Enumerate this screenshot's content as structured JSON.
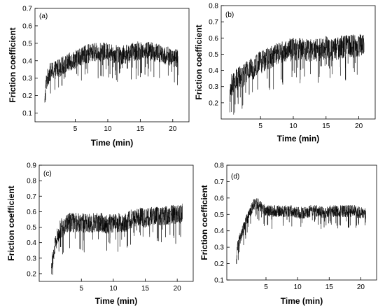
{
  "chart_data": [
    {
      "type": "line",
      "panel_label": "(a)",
      "xlabel": "Time (min)",
      "ylabel": "Friction coefficient",
      "xlim": [
        -1.2,
        22.5
      ],
      "ylim": [
        0.05,
        0.7
      ],
      "xticks": [
        5,
        10,
        15,
        20
      ],
      "yticks": [
        0.1,
        0.2,
        0.3,
        0.4,
        0.5,
        0.6,
        0.7
      ],
      "ytick_labels": [
        "0.1",
        "0.2",
        "0.3",
        "0.4",
        "0.5",
        "0.6",
        "0.7"
      ],
      "grid": false,
      "series": [
        {
          "x": [
            0.3,
            0.5,
            0.8,
            1.0,
            1.5,
            2.0,
            3.0,
            4.0,
            5.0,
            6.0,
            7.0,
            8.0,
            9.0,
            10.0,
            11.0,
            12.0,
            13.0,
            14.0,
            15.0,
            16.0,
            17.0,
            18.0,
            19.0,
            20.0,
            20.8
          ],
          "y": [
            0.16,
            0.27,
            0.31,
            0.33,
            0.34,
            0.35,
            0.37,
            0.39,
            0.41,
            0.43,
            0.44,
            0.45,
            0.45,
            0.45,
            0.44,
            0.43,
            0.44,
            0.45,
            0.46,
            0.46,
            0.45,
            0.44,
            0.43,
            0.42,
            0.41
          ],
          "noise": 0.06,
          "color": "#000000"
        }
      ]
    },
    {
      "type": "line",
      "panel_label": "(b)",
      "xlabel": "Time (min)",
      "ylabel": "Friction coefficient",
      "xlim": [
        -1.0,
        22.5
      ],
      "ylim": [
        0.1,
        0.8
      ],
      "xticks": [
        5,
        10,
        15,
        20
      ],
      "yticks": [
        0.2,
        0.3,
        0.4,
        0.5,
        0.6,
        0.7,
        0.8
      ],
      "ytick_labels": [
        "0.2",
        "0.3",
        "0.4",
        "0.5",
        "0.6",
        "0.7",
        "0.8"
      ],
      "grid": false,
      "series": [
        {
          "x": [
            0.3,
            0.5,
            1.0,
            2.0,
            3.0,
            4.0,
            5.0,
            6.0,
            7.0,
            8.0,
            9.0,
            10.0,
            11.0,
            12.0,
            13.0,
            14.0,
            15.0,
            16.0,
            17.0,
            18.0,
            19.0,
            20.0,
            20.8
          ],
          "y": [
            0.2,
            0.3,
            0.33,
            0.36,
            0.39,
            0.42,
            0.45,
            0.47,
            0.49,
            0.51,
            0.52,
            0.53,
            0.53,
            0.53,
            0.52,
            0.53,
            0.54,
            0.53,
            0.54,
            0.55,
            0.55,
            0.55,
            0.56
          ],
          "noise": 0.08,
          "color": "#000000"
        }
      ]
    },
    {
      "type": "line",
      "panel_label": "(c)",
      "xlabel": "Time (min)",
      "ylabel": "Friction coefficient",
      "xlim": [
        -1.6,
        22.5
      ],
      "ylim": [
        0.15,
        0.9
      ],
      "xticks": [
        5,
        10,
        15,
        20
      ],
      "yticks": [
        0.2,
        0.3,
        0.4,
        0.5,
        0.6,
        0.7,
        0.8,
        0.9
      ],
      "ytick_labels": [
        "0.2",
        "0.3",
        "0.4",
        "0.5",
        "0.6",
        "0.7",
        "0.8",
        "0.9"
      ],
      "grid": false,
      "series": [
        {
          "x": [
            0.3,
            0.6,
            1.0,
            1.5,
            2.0,
            3.0,
            4.0,
            5.0,
            6.0,
            7.0,
            8.0,
            9.0,
            10.0,
            11.0,
            12.0,
            13.0,
            14.0,
            15.0,
            16.0,
            17.0,
            18.0,
            19.0,
            20.0,
            20.8
          ],
          "y": [
            0.24,
            0.32,
            0.4,
            0.47,
            0.5,
            0.53,
            0.53,
            0.53,
            0.52,
            0.53,
            0.53,
            0.52,
            0.53,
            0.53,
            0.53,
            0.56,
            0.57,
            0.56,
            0.57,
            0.57,
            0.57,
            0.58,
            0.58,
            0.59
          ],
          "noise": 0.07,
          "color": "#000000"
        }
      ]
    },
    {
      "type": "line",
      "panel_label": "(d)",
      "xlabel": "Time (min)",
      "ylabel": "Friction coefficient",
      "xlim": [
        -1.2,
        22.5
      ],
      "ylim": [
        0.1,
        0.8
      ],
      "xticks": [
        5,
        10,
        15,
        20
      ],
      "yticks": [
        0.1,
        0.2,
        0.3,
        0.4,
        0.5,
        0.6,
        0.7,
        0.8
      ],
      "ytick_labels": [
        "0.1",
        "0.2",
        "0.3",
        "0.4",
        "0.5",
        "0.6",
        "0.7",
        "0.8"
      ],
      "grid": false,
      "series": [
        {
          "x": [
            0.3,
            0.5,
            1.0,
            1.5,
            2.0,
            2.5,
            3.0,
            3.5,
            4.0,
            5.0,
            6.0,
            7.0,
            8.0,
            9.0,
            10.0,
            11.0,
            12.0,
            13.0,
            14.0,
            15.0,
            16.0,
            17.0,
            18.0,
            19.0,
            20.0,
            20.8
          ],
          "y": [
            0.2,
            0.3,
            0.37,
            0.42,
            0.47,
            0.52,
            0.56,
            0.57,
            0.55,
            0.52,
            0.52,
            0.52,
            0.52,
            0.52,
            0.51,
            0.51,
            0.52,
            0.52,
            0.51,
            0.52,
            0.52,
            0.52,
            0.52,
            0.52,
            0.51,
            0.5
          ],
          "noise": 0.04,
          "color": "#000000"
        }
      ]
    }
  ]
}
